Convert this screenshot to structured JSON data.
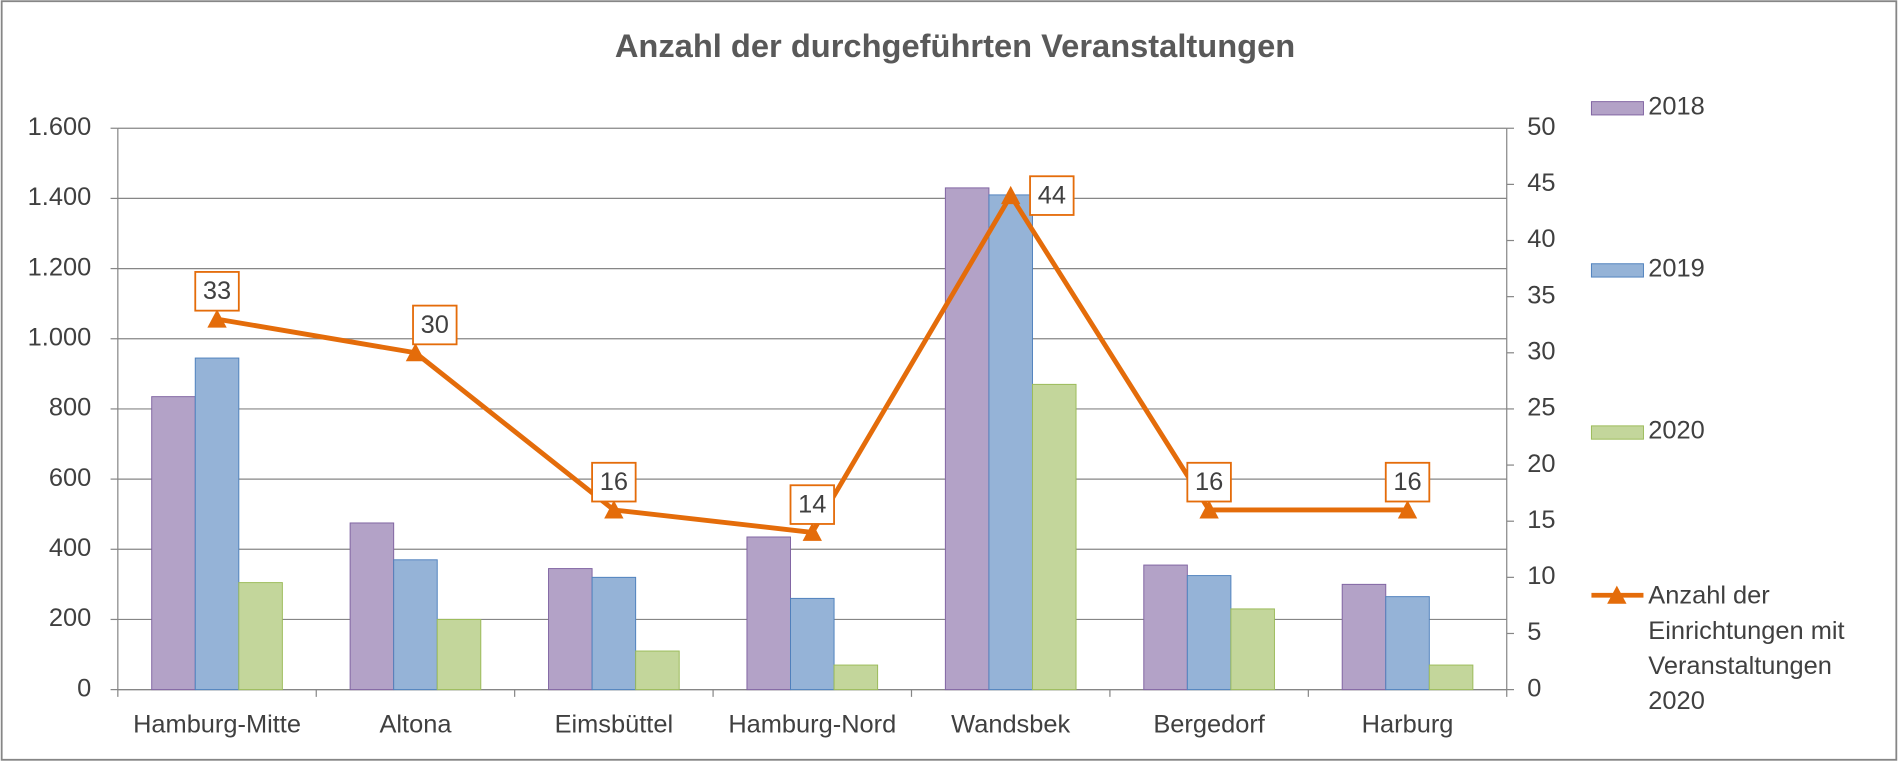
{
  "chart_data": {
    "type": "bar",
    "title": "Anzahl der durchgeführten Veranstaltungen",
    "categories": [
      "Hamburg-Mitte",
      "Altona",
      "Eimsbüttel",
      "Hamburg-Nord",
      "Wandsbek",
      "Bergedorf",
      "Harburg"
    ],
    "series": [
      {
        "name": "2018",
        "color": "#b3a2c7",
        "values": [
          835,
          475,
          345,
          435,
          1430,
          355,
          300
        ]
      },
      {
        "name": "2019",
        "color": "#95b3d7",
        "values": [
          945,
          370,
          320,
          260,
          1410,
          325,
          265
        ]
      },
      {
        "name": "2020",
        "color": "#c3d69b",
        "values": [
          305,
          200,
          110,
          70,
          870,
          230,
          70
        ]
      },
      {
        "name": "Anzahl der Einrichtungen mit Veranstaltungen 2020",
        "color": "#e46c0a",
        "type": "line",
        "axis": "y2",
        "values": [
          33,
          30,
          16,
          14,
          44,
          16,
          16
        ]
      }
    ],
    "ylim": [
      0,
      1600
    ],
    "yticks": [
      0,
      200,
      400,
      600,
      800,
      {
        "value": 1000,
        "label": "1.000"
      },
      {
        "value": 1200,
        "label": "1.200"
      },
      {
        "value": 1400,
        "label": "1.400"
      },
      {
        "value": 1600,
        "label": "1.600"
      }
    ],
    "y2lim": [
      0,
      50
    ],
    "y2ticks": [
      0,
      5,
      10,
      15,
      20,
      25,
      30,
      35,
      40,
      45,
      50
    ],
    "grid": true,
    "legend": "right"
  }
}
